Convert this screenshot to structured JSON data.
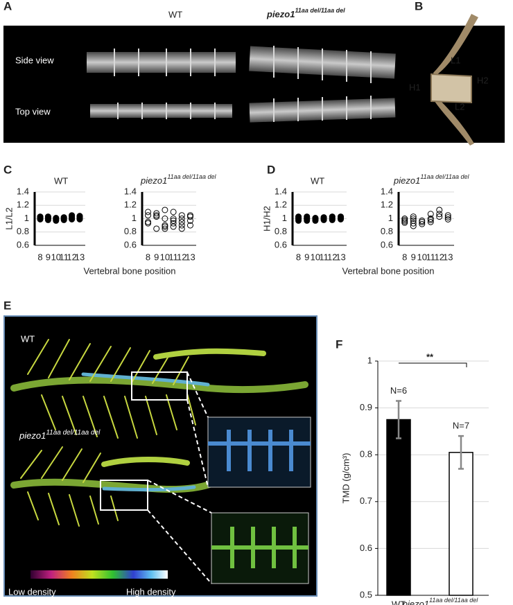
{
  "panel_a": {
    "letter": "A",
    "wt": "WT",
    "mutant": {
      "name": "piezo1",
      "sup": "11aa del/11aa del"
    },
    "rows": [
      "Side view",
      "Top view"
    ]
  },
  "panel_b": {
    "letter": "B",
    "labels": [
      "L1",
      "H1",
      "H2",
      "L2"
    ]
  },
  "panel_c": {
    "letter": "C"
  },
  "panel_d": {
    "letter": "D"
  },
  "panel_e": {
    "letter": "E",
    "wt": "WT",
    "mutant": {
      "name": "piezo1",
      "sup": "11aa del/11aa del"
    },
    "low": "Low density",
    "high": "High density"
  },
  "panel_f": {
    "letter": "F"
  },
  "chart_data": [
    {
      "type": "scatter",
      "title": "WT",
      "ylabel": "L1/L2",
      "xlabel": "Vertebral bone position",
      "marker": "filled",
      "x": [
        8,
        8,
        8,
        8,
        8,
        9,
        9,
        9,
        9,
        9,
        10,
        10,
        10,
        10,
        10,
        11,
        11,
        11,
        11,
        11,
        12,
        12,
        12,
        12,
        12,
        13,
        13,
        13,
        13,
        13
      ],
      "y": [
        0.99,
        1.0,
        1.01,
        1.02,
        1.03,
        0.98,
        1.0,
        1.01,
        1.02,
        1.03,
        0.97,
        0.98,
        0.99,
        1.0,
        1.01,
        0.98,
        0.99,
        1.0,
        1.01,
        1.02,
        0.99,
        1.0,
        1.02,
        1.04,
        1.05,
        0.99,
        1.0,
        1.02,
        1.03,
        1.04
      ],
      "xlim": [
        7.3,
        13.7
      ],
      "xticks": [
        8,
        9,
        10,
        11,
        12,
        13
      ],
      "ylim": [
        0.6,
        1.4
      ],
      "yticks": [
        0.6,
        0.8,
        1,
        1.2,
        1.4
      ],
      "grid": true
    },
    {
      "type": "scatter",
      "title": {
        "name": "piezo1",
        "sup": "11aa del/11aa del"
      },
      "marker": "open",
      "x": [
        8,
        8,
        8,
        8,
        9,
        9,
        9,
        9,
        10,
        10,
        10,
        10,
        10,
        11,
        11,
        11,
        11,
        11,
        12,
        12,
        12,
        12,
        12,
        13,
        13,
        13,
        13
      ],
      "y": [
        1.1,
        1.05,
        0.95,
        0.93,
        1.08,
        1.05,
        1.03,
        0.85,
        1.13,
        1.0,
        0.9,
        0.88,
        0.85,
        1.1,
        1.0,
        0.97,
        0.93,
        0.88,
        1.05,
        1.0,
        0.95,
        0.9,
        0.85,
        1.05,
        1.03,
        0.97,
        0.9
      ],
      "xlim": [
        7.3,
        13.7
      ],
      "xticks": [
        8,
        9,
        10,
        11,
        12,
        13
      ],
      "ylim": [
        0.6,
        1.4
      ],
      "yticks": [
        0.6,
        0.8,
        1,
        1.2,
        1.4
      ],
      "grid": true
    },
    {
      "type": "scatter",
      "title": "WT",
      "ylabel": "H1/H2",
      "xlabel": "Vertebral bone position",
      "marker": "filled",
      "x": [
        8,
        8,
        8,
        8,
        8,
        9,
        9,
        9,
        9,
        9,
        10,
        10,
        10,
        10,
        10,
        11,
        11,
        11,
        11,
        11,
        12,
        12,
        12,
        12,
        12,
        13,
        13,
        13,
        13,
        13
      ],
      "y": [
        0.97,
        0.99,
        1.0,
        1.02,
        1.03,
        0.97,
        0.99,
        1.0,
        1.01,
        1.03,
        0.97,
        0.98,
        0.99,
        1.0,
        1.01,
        0.98,
        0.99,
        1.0,
        1.01,
        1.02,
        0.98,
        0.99,
        1.0,
        1.02,
        1.03,
        0.99,
        1.0,
        1.01,
        1.02,
        1.03
      ],
      "xlim": [
        7.3,
        13.7
      ],
      "xticks": [
        8,
        9,
        10,
        11,
        12,
        13
      ],
      "ylim": [
        0.6,
        1.4
      ],
      "yticks": [
        0.6,
        0.8,
        1,
        1.2,
        1.4
      ],
      "grid": true
    },
    {
      "type": "scatter",
      "title": {
        "name": "piezo1",
        "sup": "11aa del/11aa del"
      },
      "marker": "open",
      "x": [
        8,
        8,
        8,
        8,
        9,
        9,
        9,
        9,
        9,
        10,
        10,
        10,
        11,
        11,
        11,
        11,
        12,
        12,
        12,
        13,
        13,
        13
      ],
      "y": [
        1.0,
        0.98,
        0.96,
        0.94,
        1.03,
        1.0,
        0.97,
        0.93,
        0.89,
        0.97,
        0.95,
        0.92,
        1.07,
        1.0,
        0.98,
        0.95,
        1.13,
        1.07,
        1.03,
        1.05,
        1.02,
        0.99
      ],
      "xlim": [
        7.3,
        13.7
      ],
      "xticks": [
        8,
        9,
        10,
        11,
        12,
        13
      ],
      "ylim": [
        0.6,
        1.4
      ],
      "yticks": [
        0.6,
        0.8,
        1,
        1.2,
        1.4
      ],
      "grid": true
    },
    {
      "type": "bar",
      "ylabel": "TMD (g/cm³)",
      "categories": [
        "WT",
        {
          "name": "piezo1",
          "sup": "11aa del/11aa del"
        }
      ],
      "values": [
        0.875,
        0.805
      ],
      "errors": [
        0.04,
        0.035
      ],
      "n_labels": [
        "N=6",
        "N=7"
      ],
      "significance": "**",
      "colors": [
        "#000000",
        "#ffffff"
      ],
      "ylim": [
        0.5,
        1
      ],
      "yticks": [
        0.5,
        0.6,
        0.7,
        0.8,
        0.9,
        1
      ],
      "grid": true
    }
  ]
}
